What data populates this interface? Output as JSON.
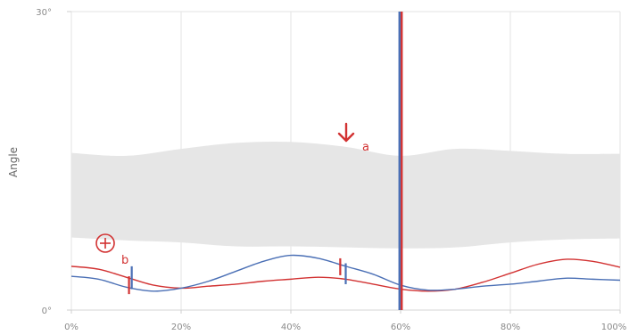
{
  "chart_data": {
    "type": "line",
    "ylabel": "Angle",
    "xlim": [
      0,
      100
    ],
    "ylim": [
      0,
      30
    ],
    "x_ticks": [
      "0%",
      "20%",
      "40%",
      "60%",
      "80%",
      "100%"
    ],
    "y_ticks": [
      "30°",
      "0°"
    ],
    "grid": true,
    "band": {
      "upper": [
        [
          0,
          15.8
        ],
        [
          10,
          15.5
        ],
        [
          20,
          16.2
        ],
        [
          30,
          16.8
        ],
        [
          40,
          16.9
        ],
        [
          50,
          16.4
        ],
        [
          60,
          15.5
        ],
        [
          70,
          16.2
        ],
        [
          80,
          16.0
        ],
        [
          90,
          15.7
        ],
        [
          100,
          15.7
        ]
      ],
      "lower": [
        [
          0,
          7.3
        ],
        [
          10,
          7.0
        ],
        [
          20,
          6.8
        ],
        [
          30,
          6.4
        ],
        [
          40,
          6.4
        ],
        [
          50,
          6.3
        ],
        [
          60,
          6.2
        ],
        [
          70,
          6.3
        ],
        [
          80,
          6.8
        ],
        [
          90,
          7.1
        ],
        [
          100,
          7.2
        ]
      ]
    },
    "series": [
      {
        "color": "#d23232",
        "points": [
          [
            0,
            4.4
          ],
          [
            5,
            4.1
          ],
          [
            10,
            3.3
          ],
          [
            15,
            2.5
          ],
          [
            20,
            2.2
          ],
          [
            25,
            2.4
          ],
          [
            30,
            2.6
          ],
          [
            35,
            2.9
          ],
          [
            40,
            3.1
          ],
          [
            45,
            3.3
          ],
          [
            50,
            3.1
          ],
          [
            55,
            2.6
          ],
          [
            60,
            2.1
          ],
          [
            65,
            1.9
          ],
          [
            70,
            2.1
          ],
          [
            75,
            2.8
          ],
          [
            80,
            3.7
          ],
          [
            85,
            4.6
          ],
          [
            90,
            5.1
          ],
          [
            95,
            4.9
          ],
          [
            100,
            4.3
          ]
        ]
      },
      {
        "color": "#4a6fb5",
        "points": [
          [
            0,
            3.4
          ],
          [
            5,
            3.1
          ],
          [
            10,
            2.3
          ],
          [
            15,
            1.9
          ],
          [
            20,
            2.2
          ],
          [
            25,
            2.9
          ],
          [
            30,
            3.9
          ],
          [
            35,
            4.9
          ],
          [
            40,
            5.5
          ],
          [
            45,
            5.2
          ],
          [
            50,
            4.4
          ],
          [
            55,
            3.6
          ],
          [
            60,
            2.5
          ],
          [
            65,
            2.0
          ],
          [
            70,
            2.1
          ],
          [
            75,
            2.4
          ],
          [
            80,
            2.6
          ],
          [
            85,
            2.9
          ],
          [
            90,
            3.2
          ],
          [
            95,
            3.1
          ],
          [
            100,
            3.0
          ]
        ]
      }
    ],
    "markers": [
      {
        "color": "#d23232",
        "x": 10.5,
        "y_from": 1.6,
        "y_to": 3.4
      },
      {
        "color": "#4a6fb5",
        "x": 11.0,
        "y_from": 2.1,
        "y_to": 4.4
      },
      {
        "color": "#d23232",
        "x": 49.0,
        "y_from": 3.5,
        "y_to": 5.2
      },
      {
        "color": "#4a6fb5",
        "x": 50.0,
        "y_from": 2.6,
        "y_to": 4.7
      }
    ],
    "vertical_lines": [
      {
        "color": "#4a6fb5",
        "x": 59.8
      },
      {
        "color": "#d23232",
        "x": 60.2
      }
    ],
    "annotations": [
      {
        "label": "a",
        "color": "#d23232",
        "icon": "arrow-down-icon"
      },
      {
        "label": "b",
        "color": "#d23232",
        "icon": "plus-circle-icon"
      }
    ]
  }
}
